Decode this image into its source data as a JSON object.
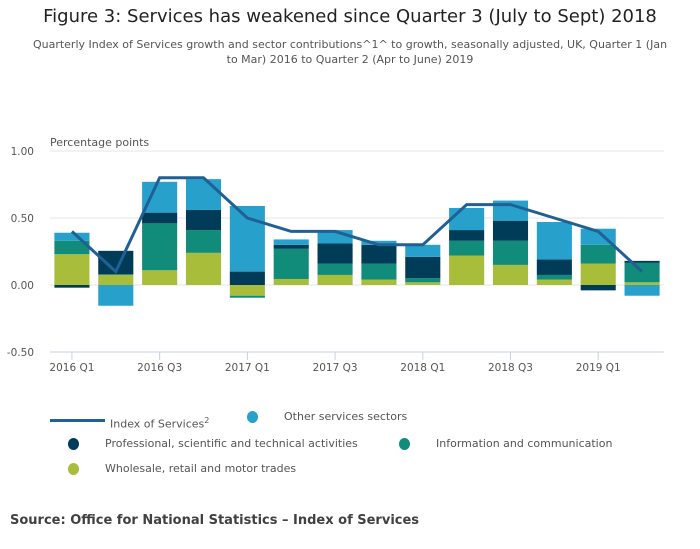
{
  "header": {
    "title": "Figure 3: Services has weakened since Quarter 3 (July to Sept) 2018",
    "subtitle": "Quarterly Index of Services growth and sector contributions^1^ to growth, seasonally adjusted, UK, Quarter 1 (Jan to Mar) 2016 to Quarter 2 (Apr to June) 2019"
  },
  "chart_data": {
    "type": "bar",
    "stacked": true,
    "title": "Figure 3: Services has weakened since Quarter 3 (July to Sept) 2018",
    "ylabel": "Percentage points",
    "xlabel": "",
    "ylim": [
      -0.5,
      1.0
    ],
    "yticks": [
      "1.00",
      "0.50",
      "0.00",
      "-0.50"
    ],
    "ytick_values": [
      1.0,
      0.5,
      0.0,
      -0.5
    ],
    "grid": true,
    "legend_position": "bottom",
    "categories": [
      "2016 Q1",
      "2016 Q2",
      "2016 Q3",
      "2016 Q4",
      "2017 Q1",
      "2017 Q2",
      "2017 Q3",
      "2017 Q4",
      "2018 Q1",
      "2018 Q2",
      "2018 Q3",
      "2018 Q4",
      "2019 Q1",
      "2019 Q2"
    ],
    "xtick_labels": [
      "2016 Q1",
      "2016 Q3",
      "2017 Q1",
      "2017 Q3",
      "2018 Q1",
      "2018 Q3",
      "2019 Q1"
    ],
    "xtick_indices": [
      0,
      2,
      4,
      6,
      8,
      10,
      12
    ],
    "series": [
      {
        "name": "Wholesale, retail and motor trades",
        "kind": "bar",
        "color": "#a8bd3a",
        "values": [
          0.23,
          0.075,
          0.11,
          0.24,
          -0.08,
          0.045,
          0.075,
          0.04,
          0.02,
          0.22,
          0.15,
          0.04,
          0.16,
          0.02
        ]
      },
      {
        "name": "Information and communication",
        "kind": "bar",
        "color": "#118c7b",
        "values": [
          0.1,
          0.005,
          0.35,
          0.17,
          -0.015,
          0.225,
          0.085,
          0.12,
          0.03,
          0.11,
          0.18,
          0.035,
          0.14,
          0.145
        ]
      },
      {
        "name": "Professional, scientific and technical activities",
        "kind": "bar",
        "color": "#003c57",
        "values": [
          -0.02,
          0.175,
          0.08,
          0.15,
          0.1,
          0.03,
          0.15,
          0.14,
          0.16,
          0.08,
          0.15,
          0.115,
          -0.04,
          0.015
        ]
      },
      {
        "name": "Other services sectors",
        "kind": "bar",
        "color": "#27a0cc",
        "values": [
          0.06,
          -0.155,
          0.23,
          0.23,
          0.49,
          0.04,
          0.1,
          0.03,
          0.09,
          0.165,
          0.15,
          0.28,
          0.12,
          -0.08
        ]
      },
      {
        "name": "Index of Services",
        "kind": "line",
        "color": "#206095",
        "values": [
          0.4,
          0.1,
          0.8,
          0.8,
          0.5,
          0.4,
          0.4,
          0.3,
          0.3,
          0.6,
          0.6,
          0.5,
          0.4,
          0.1
        ]
      }
    ]
  },
  "legend": {
    "items": [
      {
        "label": "Index of Services",
        "sup": "2",
        "color": "#206095",
        "shape": "line"
      },
      {
        "label": "Other services sectors",
        "color": "#27a0cc",
        "shape": "dot"
      },
      {
        "label": "Professional, scientific and technical activities",
        "color": "#003c57",
        "shape": "dot"
      },
      {
        "label": "Information and communication",
        "color": "#118c7b",
        "shape": "dot"
      },
      {
        "label": "Wholesale, retail and motor trades",
        "color": "#a8bd3a",
        "shape": "dot"
      }
    ]
  },
  "footer": {
    "source": "Source: Office for National Statistics – Index of Services"
  }
}
